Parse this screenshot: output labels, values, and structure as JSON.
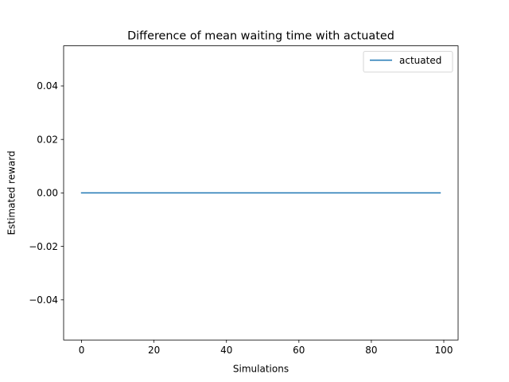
{
  "chart_data": {
    "type": "line",
    "title": "Difference of mean waiting time with actuated",
    "xlabel": "Simulations",
    "ylabel": "Estimated reward",
    "xlim": [
      -4.95,
      103.95
    ],
    "ylim": [
      -0.055,
      0.055
    ],
    "xticks": [
      0,
      20,
      40,
      60,
      80,
      100
    ],
    "xtick_labels": [
      "0",
      "20",
      "40",
      "60",
      "80",
      "100"
    ],
    "yticks": [
      -0.04,
      -0.02,
      0.0,
      0.02,
      0.04
    ],
    "ytick_labels": [
      "−0.04",
      "−0.02",
      "0.00",
      "0.02",
      "0.04"
    ],
    "grid": false,
    "legend_position": "top-right",
    "series": [
      {
        "name": "actuated",
        "color": "#1f77b4",
        "x_start": 0,
        "x_end": 99,
        "x_step": 1,
        "y_constant": 0
      }
    ]
  }
}
